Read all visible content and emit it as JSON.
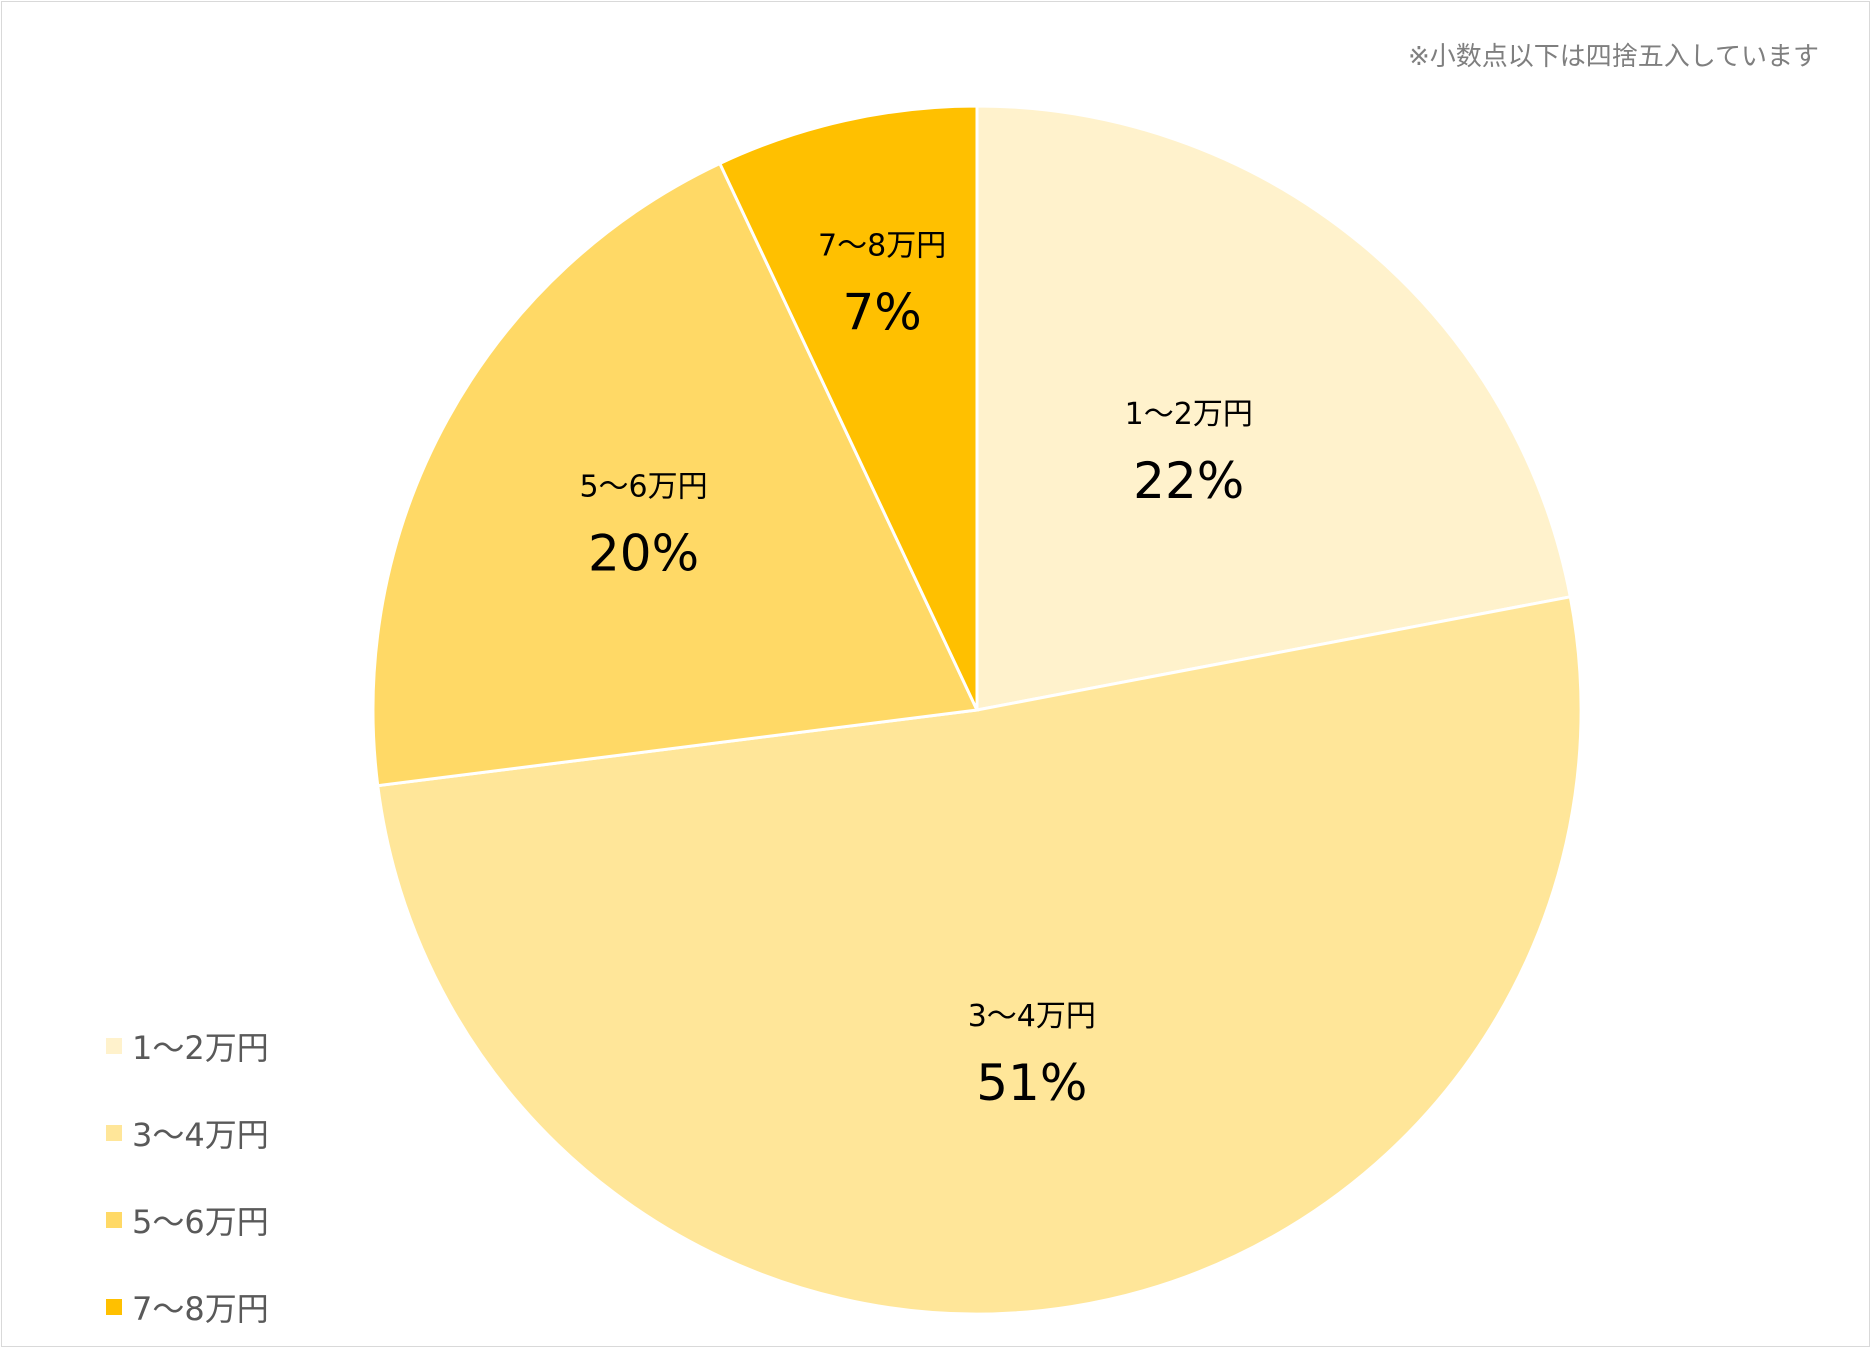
{
  "note": "※小数点以下は四捨五入しています",
  "chart_data": {
    "type": "pie",
    "categories": [
      "1〜2万円",
      "3〜4万円",
      "5〜6万円",
      "7〜8万円"
    ],
    "values": [
      22,
      51,
      20,
      7
    ],
    "value_labels": [
      "22%",
      "51%",
      "20%",
      "7%"
    ],
    "colors": [
      "#FFF2CC",
      "#FFE699",
      "#FFD966",
      "#FFC000"
    ],
    "start_angle": "12 o'clock",
    "direction": "clockwise",
    "legend": "bottom-left"
  }
}
